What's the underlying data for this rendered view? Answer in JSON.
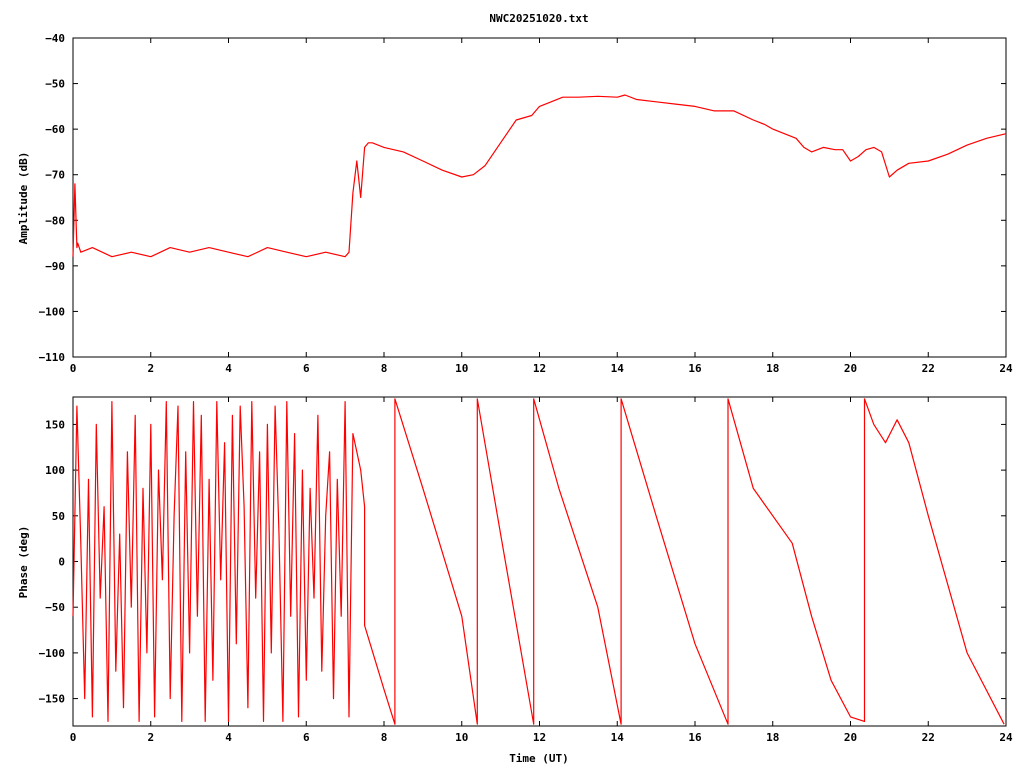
{
  "chart_data": [
    {
      "type": "line",
      "title": "NWC20251020.txt",
      "xlabel": "",
      "ylabel": "Amplitude (dB)",
      "xlim": [
        0,
        24
      ],
      "ylim": [
        -110,
        -40
      ],
      "xticks": [
        0,
        2,
        4,
        6,
        8,
        10,
        12,
        14,
        16,
        18,
        20,
        22,
        24
      ],
      "yticks": [
        -110,
        -100,
        -90,
        -80,
        -70,
        -60,
        -50,
        -40
      ],
      "xtick_labels": [
        "0",
        "2",
        "4",
        "6",
        "8",
        "10",
        "12",
        "14",
        "16",
        "18",
        "20",
        "22",
        "24"
      ],
      "ytick_labels": [
        "−110",
        "−100",
        "−90",
        "−80",
        "−70",
        "−60",
        "−50",
        "−40"
      ],
      "grid": false,
      "color": "#ff0000",
      "series": [
        {
          "x": [
            0.0,
            0.05,
            0.1,
            0.12,
            0.2,
            0.5,
            1.0,
            1.5,
            2.0,
            2.5,
            3.0,
            3.5,
            4.0,
            4.5,
            5.0,
            5.5,
            6.0,
            6.5,
            7.0,
            7.1,
            7.2,
            7.3,
            7.4,
            7.5,
            7.6,
            7.7,
            8.0,
            8.5,
            9.0,
            9.5,
            10.0,
            10.3,
            10.6,
            11.0,
            11.4,
            11.8,
            12.0,
            12.3,
            12.6,
            13.0,
            13.5,
            14.0,
            14.2,
            14.5,
            15.0,
            15.5,
            16.0,
            16.5,
            17.0,
            17.5,
            17.8,
            18.0,
            18.3,
            18.6,
            18.8,
            19.0,
            19.3,
            19.6,
            19.8,
            20.0,
            20.2,
            20.4,
            20.6,
            20.8,
            21.0,
            21.2,
            21.5,
            22.0,
            22.5,
            23.0,
            23.5,
            24.0
          ],
          "y": [
            -88,
            -72,
            -86,
            -85,
            -87,
            -86,
            -88,
            -87,
            -88,
            -86,
            -87,
            -86,
            -87,
            -88,
            -86,
            -87,
            -88,
            -87,
            -88,
            -87,
            -74,
            -67,
            -75,
            -64,
            -63,
            -63,
            -64,
            -65,
            -67,
            -69,
            -70.5,
            -70,
            -68,
            -63,
            -58,
            -57,
            -55,
            -54,
            -53,
            -53,
            -52.8,
            -53,
            -52.5,
            -53.5,
            -54,
            -54.5,
            -55,
            -56,
            -56,
            -58,
            -59,
            -60,
            -61,
            -62,
            -64,
            -65,
            -64,
            -64.5,
            -64.5,
            -67,
            -66,
            -64.5,
            -64,
            -65,
            -70.5,
            -69,
            -67.5,
            -67,
            -65.5,
            -63.5,
            -62,
            -61
          ]
        }
      ]
    },
    {
      "type": "line",
      "title": "",
      "xlabel": "Time (UT)",
      "ylabel": "Phase (deg)",
      "xlim": [
        0,
        24
      ],
      "ylim": [
        -180,
        180
      ],
      "xticks": [
        0,
        2,
        4,
        6,
        8,
        10,
        12,
        14,
        16,
        18,
        20,
        22,
        24
      ],
      "yticks": [
        -150,
        -100,
        -50,
        0,
        50,
        100,
        150
      ],
      "xtick_labels": [
        "0",
        "2",
        "4",
        "6",
        "8",
        "10",
        "12",
        "14",
        "16",
        "18",
        "20",
        "22",
        "24"
      ],
      "ytick_labels": [
        "−150",
        "−100",
        "−50",
        "0",
        "50",
        "100",
        "150"
      ],
      "grid": false,
      "color": "#ff0000",
      "series": [
        {
          "x": [
            0.0,
            0.1,
            0.2,
            0.3,
            0.4,
            0.5,
            0.6,
            0.7,
            0.8,
            0.9,
            1.0,
            1.1,
            1.2,
            1.3,
            1.4,
            1.5,
            1.6,
            1.7,
            1.8,
            1.9,
            2.0,
            2.1,
            2.2,
            2.3,
            2.4,
            2.5,
            2.6,
            2.7,
            2.8,
            2.9,
            3.0,
            3.1,
            3.2,
            3.3,
            3.4,
            3.5,
            3.6,
            3.7,
            3.8,
            3.9,
            4.0,
            4.1,
            4.2,
            4.3,
            4.4,
            4.5,
            4.6,
            4.7,
            4.8,
            4.9,
            5.0,
            5.1,
            5.2,
            5.3,
            5.4,
            5.5,
            5.6,
            5.7,
            5.8,
            5.9,
            6.0,
            6.1,
            6.2,
            6.3,
            6.4,
            6.5,
            6.6,
            6.7,
            6.8,
            6.9,
            7.0,
            7.1,
            7.2,
            7.3,
            7.4,
            7.5,
            7.5,
            8.0,
            8.28,
            8.28,
            9.0,
            10.0,
            10.4,
            10.4,
            11.0,
            11.85,
            11.85,
            12.5,
            13.5,
            14.1,
            14.1,
            15.0,
            16.0,
            16.85,
            16.85,
            17.5,
            18.5,
            19.0,
            19.5,
            20.0,
            20.36,
            20.36,
            20.6,
            20.9,
            21.2,
            21.5,
            22.0,
            23.0,
            23.95
          ],
          "y": [
            -60,
            170,
            20,
            -150,
            90,
            -170,
            150,
            -40,
            60,
            -175,
            175,
            -120,
            30,
            -160,
            120,
            -50,
            160,
            -175,
            80,
            -100,
            150,
            -170,
            100,
            -20,
            175,
            -150,
            50,
            170,
            -175,
            120,
            -100,
            175,
            -60,
            160,
            -175,
            90,
            -130,
            175,
            -20,
            130,
            -175,
            160,
            -90,
            170,
            60,
            -160,
            175,
            -40,
            120,
            -175,
            150,
            -100,
            170,
            30,
            -175,
            175,
            -60,
            140,
            -170,
            100,
            -130,
            80,
            -40,
            160,
            -120,
            50,
            120,
            -150,
            90,
            -60,
            175,
            -170,
            140,
            120,
            100,
            60,
            -70,
            -140,
            -178,
            178,
            80,
            -60,
            -178,
            178,
            30,
            -178,
            178,
            80,
            -50,
            -178,
            178,
            50,
            -90,
            -178,
            178,
            80,
            20,
            -60,
            -130,
            -170,
            -175,
            178,
            150,
            130,
            155,
            130,
            50,
            -100,
            -178
          ]
        }
      ]
    }
  ]
}
